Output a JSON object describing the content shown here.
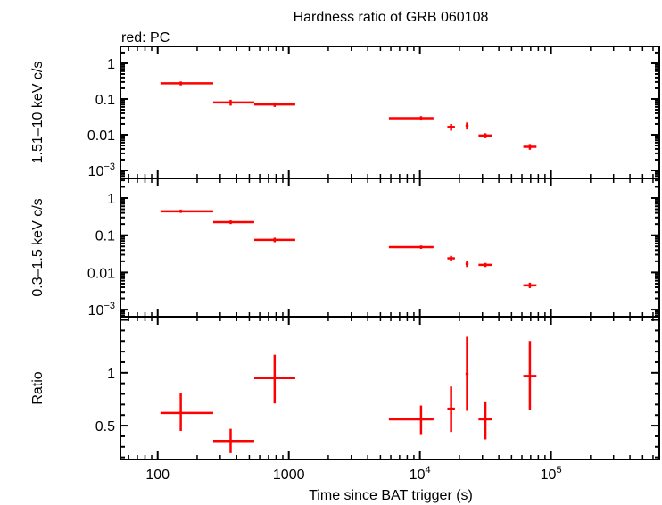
{
  "chart_data": {
    "type": "scatter",
    "title": "Hardness ratio of GRB 060108",
    "subtitle": "red: PC",
    "xlabel": "Time since BAT trigger (s)",
    "xscale": "log",
    "xlim": [
      52,
      670000
    ],
    "xticks": [
      {
        "value": 100,
        "label": "100"
      },
      {
        "value": 1000,
        "label": "1000"
      },
      {
        "value": 10000,
        "base": "10",
        "exp": "4"
      },
      {
        "value": 100000,
        "base": "10",
        "exp": "5"
      }
    ],
    "color": "#ff0000",
    "x": [
      150,
      360,
      780,
      10200,
      17300,
      22900,
      31600,
      69000
    ],
    "xerr": [
      [
        105,
        265
      ],
      [
        265,
        545
      ],
      [
        545,
        1120
      ],
      [
        5800,
        12700
      ],
      [
        16200,
        18500
      ],
      [
        22300,
        23500
      ],
      [
        28000,
        35300
      ],
      [
        61500,
        77500
      ]
    ],
    "panels": [
      {
        "name": "hard-band",
        "ylabel": "1.51–10 keV c/s",
        "yscale": "log",
        "ylim": [
          0.000596,
          2.98
        ],
        "yticks": [
          {
            "value": 1,
            "label": "1"
          },
          {
            "value": 0.1,
            "label": "0.1"
          },
          {
            "value": 0.01,
            "label": "0.01"
          },
          {
            "value": 0.001,
            "base": "10",
            "exp": "−3"
          }
        ],
        "y": [
          0.275,
          0.08,
          0.07,
          0.029,
          0.0165,
          0.018,
          0.0095,
          0.0046
        ],
        "yerr": [
          [
            0.24,
            0.31
          ],
          [
            0.065,
            0.095
          ],
          [
            0.06,
            0.08
          ],
          [
            0.025,
            0.033
          ],
          [
            0.013,
            0.02
          ],
          [
            0.014,
            0.022
          ],
          [
            0.008,
            0.011
          ],
          [
            0.0038,
            0.0055
          ]
        ]
      },
      {
        "name": "soft-band",
        "ylabel": "0.3–1.5 keV c/s",
        "yscale": "log",
        "ylim": [
          0.000646,
          3.37
        ],
        "yticks": [
          {
            "value": 1,
            "label": "1"
          },
          {
            "value": 0.1,
            "label": "0.1"
          },
          {
            "value": 0.01,
            "label": "0.01"
          },
          {
            "value": 0.001,
            "base": "10",
            "exp": "−3"
          }
        ],
        "y": [
          0.44,
          0.225,
          0.075,
          0.048,
          0.024,
          0.017,
          0.016,
          0.0045
        ],
        "yerr": [
          [
            0.4,
            0.49
          ],
          [
            0.2,
            0.25
          ],
          [
            0.065,
            0.086
          ],
          [
            0.043,
            0.053
          ],
          [
            0.02,
            0.028
          ],
          [
            0.014,
            0.02
          ],
          [
            0.014,
            0.018
          ],
          [
            0.0038,
            0.0053
          ]
        ]
      },
      {
        "name": "ratio",
        "ylabel": "Ratio",
        "yscale": "linear",
        "ylim": [
          0.18,
          1.53
        ],
        "yticks": [
          {
            "value": 1,
            "label": "1"
          },
          {
            "value": 0.5,
            "label": "0.5"
          }
        ],
        "y": [
          0.62,
          0.355,
          0.95,
          0.56,
          0.66,
          0.99,
          0.56,
          0.97
        ],
        "yerr": [
          [
            0.45,
            0.81
          ],
          [
            0.24,
            0.47
          ],
          [
            0.71,
            1.17
          ],
          [
            0.42,
            0.69
          ],
          [
            0.44,
            0.87
          ],
          [
            0.64,
            1.34
          ],
          [
            0.37,
            0.73
          ],
          [
            0.65,
            1.3
          ]
        ]
      }
    ]
  }
}
